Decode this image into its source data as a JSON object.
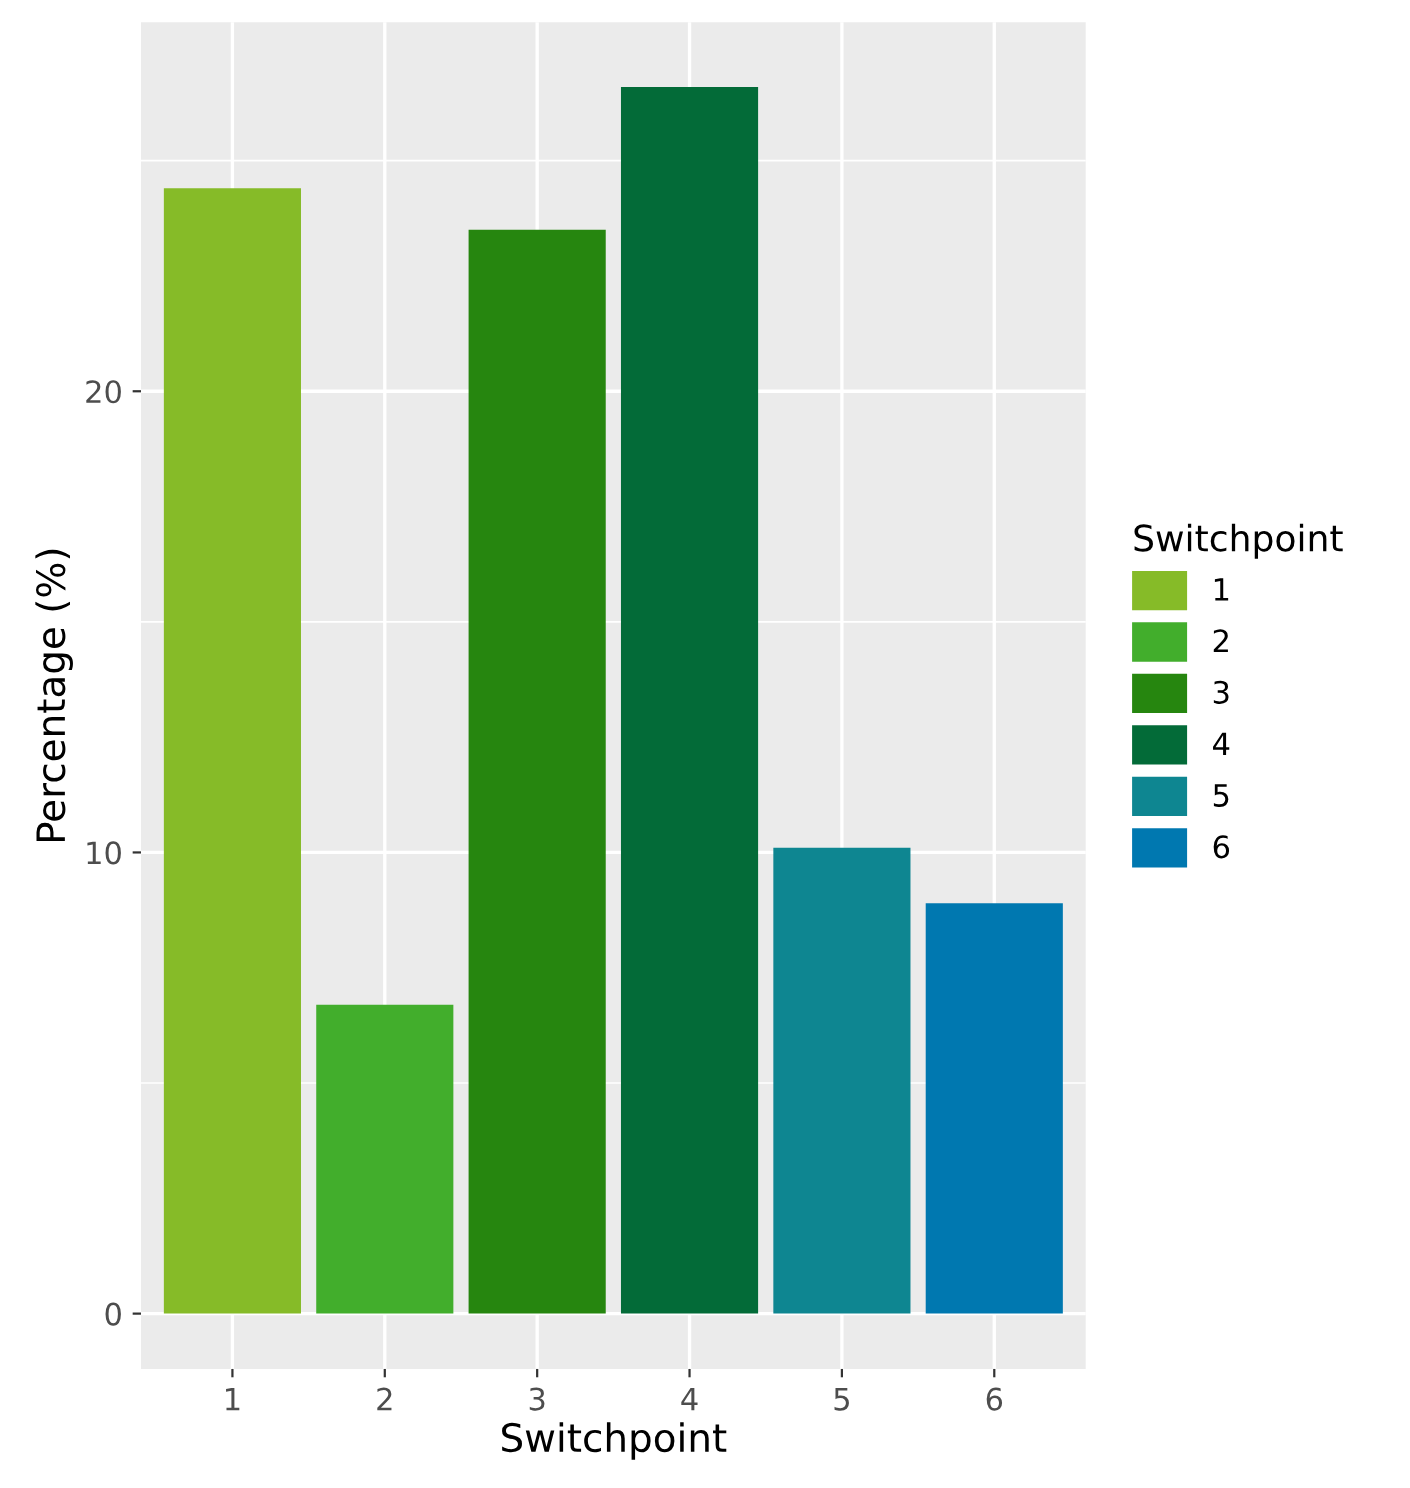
{
  "chart_data": {
    "type": "bar",
    "xlabel": "Switchpoint",
    "ylabel": "Percentage (%)",
    "legend_title": "Switchpoint",
    "categories": [
      "1",
      "2",
      "3",
      "4",
      "5",
      "6"
    ],
    "series": [
      {
        "name": "1",
        "color": "#86bb28",
        "values": [
          24.4,
          null,
          null,
          null,
          null,
          null
        ]
      },
      {
        "name": "2",
        "color": "#42ae2c",
        "values": [
          null,
          6.7,
          null,
          null,
          null,
          null
        ]
      },
      {
        "name": "3",
        "color": "#26860f",
        "values": [
          null,
          null,
          23.5,
          null,
          null,
          null
        ]
      },
      {
        "name": "4",
        "color": "#036b38",
        "values": [
          null,
          null,
          null,
          26.6,
          null,
          null
        ]
      },
      {
        "name": "5",
        "color": "#0e8691",
        "values": [
          null,
          null,
          null,
          null,
          10.1,
          null
        ]
      },
      {
        "name": "6",
        "color": "#0078b0",
        "values": [
          null,
          null,
          null,
          null,
          null,
          8.9
        ]
      }
    ],
    "ylim": [
      -1.2,
      28
    ],
    "yticks": [
      0,
      {
        "value": 5,
        "label": null
      },
      10,
      {
        "value": 15,
        "label": null
      },
      20,
      {
        "value": 25,
        "label": null
      }
    ],
    "grid": true,
    "legend": "right"
  }
}
